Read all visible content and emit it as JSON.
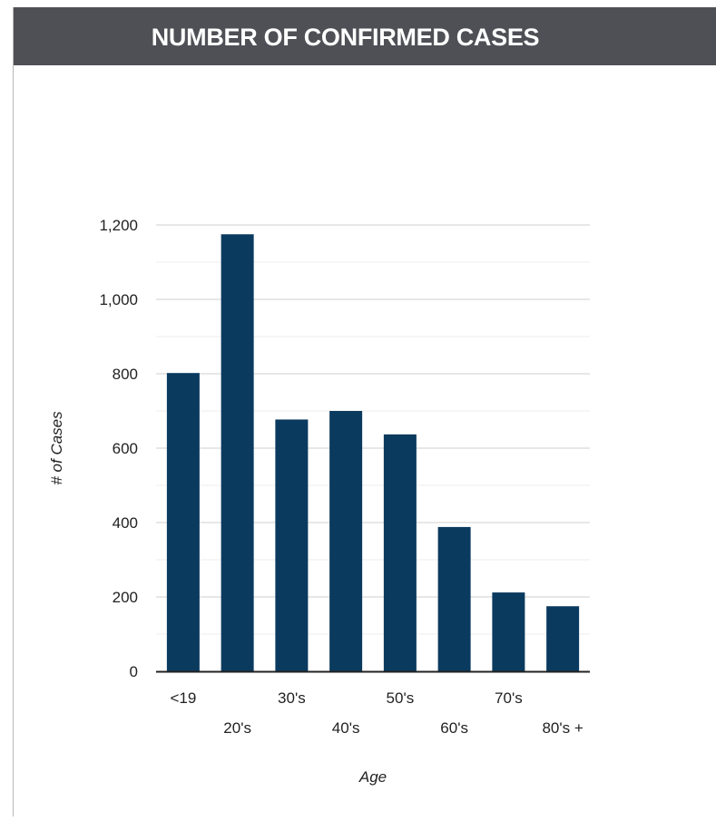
{
  "header": {
    "title": "NUMBER OF CONFIRMED CASES"
  },
  "colors": {
    "header_bg": "#4f5056",
    "bar": "#0b3a5f",
    "grid": "#cfcfcf",
    "axis": "#222222"
  },
  "chart_data": {
    "type": "bar",
    "title": "NUMBER OF CONFIRMED CASES",
    "xlabel": "Age",
    "ylabel": "# of Cases",
    "categories": [
      "<19",
      "20's",
      "30's",
      "40's",
      "50's",
      "60's",
      "70's",
      "80's +"
    ],
    "values": [
      802,
      1175,
      677,
      700,
      637,
      388,
      212,
      175
    ],
    "ylim": [
      0,
      1200
    ],
    "yticks": [
      0,
      200,
      400,
      600,
      800,
      1000,
      1200
    ],
    "ytick_labels": [
      "0",
      "200",
      "400",
      "600",
      "800",
      "1,000",
      "1,200"
    ],
    "grid": true,
    "legend": "none"
  }
}
